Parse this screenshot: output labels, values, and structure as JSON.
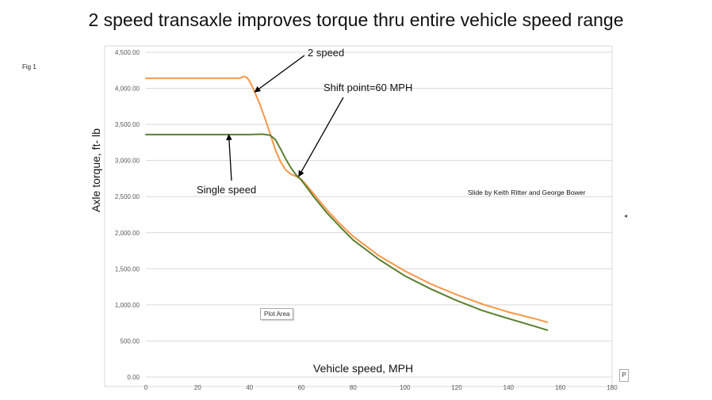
{
  "slide": {
    "title": "2 speed transaxle improves torque thru entire vehicle speed range",
    "fig_label": "Fig 1",
    "credit": "Slide by Keith Ritter and George Bower",
    "plot_area_tag": "Plot Area",
    "edge_handle": "P"
  },
  "colors": {
    "two_speed": "#F79646",
    "single_speed": "#5A7F2E",
    "grid": "#D9D9D9",
    "axis_text": "#595959"
  },
  "chart_data": {
    "type": "line",
    "title": "2 speed transaxle improves torque thru entire vehicle speed range",
    "xlabel": "Vehicle speed, MPH",
    "ylabel": "Axle torque, ft- lb",
    "xlim": [
      0,
      180
    ],
    "ylim": [
      0,
      4500
    ],
    "x_ticks": [
      0,
      20,
      40,
      60,
      80,
      100,
      120,
      140,
      160,
      180
    ],
    "y_ticks": [
      0,
      500,
      1000,
      1500,
      2000,
      2500,
      3000,
      3500,
      4000,
      4500
    ],
    "x_tick_labels": [
      "0",
      "20",
      "40",
      "60",
      "80",
      "100",
      "120",
      "140",
      "160",
      "180"
    ],
    "y_tick_labels": [
      "0.00",
      "500.00",
      "1,000.00",
      "1,500.00",
      "2,000.00",
      "2,500.00",
      "3,000.00",
      "3,500.00",
      "4,000.00",
      "4,500.00"
    ],
    "grid": "horizontal",
    "series": [
      {
        "name": "2 speed",
        "x": [
          0,
          10,
          20,
          30,
          36,
          38,
          39,
          40,
          41,
          42,
          44,
          46,
          48,
          50,
          52,
          54,
          56,
          58,
          60,
          62,
          65,
          70,
          75,
          80,
          90,
          100,
          110,
          120,
          130,
          140,
          150,
          155
        ],
        "y": [
          4140,
          4140,
          4140,
          4140,
          4140,
          4165,
          4150,
          4100,
          4030,
          3950,
          3780,
          3580,
          3370,
          3150,
          2980,
          2870,
          2810,
          2780,
          2740,
          2660,
          2530,
          2310,
          2120,
          1950,
          1680,
          1470,
          1290,
          1140,
          1010,
          900,
          810,
          760
        ]
      },
      {
        "name": "Single speed",
        "x": [
          0,
          10,
          20,
          30,
          40,
          45,
          48,
          50,
          52,
          54,
          56,
          58,
          60,
          65,
          70,
          75,
          80,
          90,
          100,
          110,
          120,
          130,
          140,
          150,
          155
        ],
        "y": [
          3360,
          3360,
          3360,
          3360,
          3360,
          3365,
          3350,
          3290,
          3160,
          3020,
          2900,
          2800,
          2730,
          2490,
          2270,
          2080,
          1900,
          1630,
          1400,
          1220,
          1060,
          920,
          810,
          705,
          650
        ]
      }
    ],
    "annotations": [
      {
        "text": "2 speed",
        "target": [
          42,
          3950
        ]
      },
      {
        "text": "Shift point=60 MPH",
        "target": [
          59,
          2780
        ]
      },
      {
        "text": "Single speed",
        "target": [
          32,
          3360
        ]
      }
    ]
  }
}
